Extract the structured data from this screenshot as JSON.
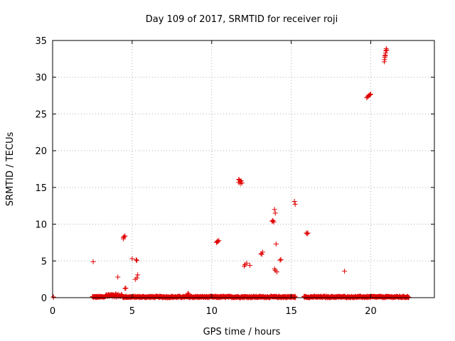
{
  "chart_data": {
    "type": "scatter",
    "title": "Day 109 of 2017, SRMTID for receiver roji",
    "xlabel": "GPS time / hours",
    "ylabel": "SRMTID / TECUs",
    "xlim": [
      0,
      24
    ],
    "ylim": [
      0,
      35
    ],
    "xticks": [
      0,
      5,
      10,
      15,
      20
    ],
    "yticks": [
      0,
      5,
      10,
      15,
      20,
      25,
      30,
      35
    ],
    "xtick_labels": [
      "0",
      "5",
      "10",
      "15",
      "20"
    ],
    "ytick_labels": [
      "0",
      "5",
      "10",
      "15",
      "20",
      "25",
      "30",
      "35"
    ],
    "grid": true,
    "marker": "+",
    "color": "#e00000",
    "series": [
      {
        "points": [
          [
            0.05,
            0.1
          ],
          [
            0.05,
            0.05
          ],
          [
            2.55,
            4.9
          ],
          [
            4.1,
            2.8
          ],
          [
            4.45,
            8.2
          ],
          [
            4.5,
            8.3
          ],
          [
            4.55,
            8.4
          ],
          [
            4.45,
            8.0
          ],
          [
            4.6,
            1.3
          ],
          [
            4.55,
            1.25
          ],
          [
            5.0,
            5.3
          ],
          [
            5.2,
            2.5
          ],
          [
            5.3,
            2.7
          ],
          [
            5.35,
            3.1
          ],
          [
            5.25,
            5.15
          ],
          [
            5.3,
            5.05
          ],
          [
            8.5,
            0.6
          ],
          [
            8.55,
            0.5
          ],
          [
            10.3,
            7.5
          ],
          [
            10.35,
            7.7
          ],
          [
            10.4,
            7.6
          ],
          [
            10.45,
            7.8
          ],
          [
            10.35,
            7.65
          ],
          [
            11.7,
            15.7
          ],
          [
            11.75,
            16.0
          ],
          [
            11.8,
            15.8
          ],
          [
            11.85,
            15.9
          ],
          [
            11.9,
            15.6
          ],
          [
            11.7,
            16.1
          ],
          [
            11.8,
            15.5
          ],
          [
            12.05,
            4.3
          ],
          [
            12.1,
            4.5
          ],
          [
            12.2,
            4.7
          ],
          [
            12.4,
            4.4
          ],
          [
            13.1,
            6.0
          ],
          [
            13.2,
            6.2
          ],
          [
            13.15,
            5.9
          ],
          [
            13.8,
            10.4
          ],
          [
            13.85,
            10.5
          ],
          [
            13.9,
            10.3
          ],
          [
            13.85,
            10.45
          ],
          [
            13.95,
            12.0
          ],
          [
            14.0,
            11.5
          ],
          [
            13.95,
            3.9
          ],
          [
            14.0,
            3.7
          ],
          [
            14.1,
            3.5
          ],
          [
            14.05,
            7.3
          ],
          [
            14.3,
            5.1
          ],
          [
            14.35,
            5.2
          ],
          [
            15.2,
            13.1
          ],
          [
            15.25,
            12.7
          ],
          [
            15.95,
            8.8
          ],
          [
            16.0,
            8.7
          ],
          [
            16.05,
            8.8
          ],
          [
            18.35,
            3.6
          ],
          [
            19.75,
            27.2
          ],
          [
            19.8,
            27.35
          ],
          [
            19.85,
            27.45
          ],
          [
            19.9,
            27.55
          ],
          [
            19.95,
            27.6
          ],
          [
            20.0,
            27.7
          ],
          [
            20.85,
            32.1
          ],
          [
            20.87,
            32.4
          ],
          [
            20.89,
            32.7
          ],
          [
            20.91,
            33.0
          ],
          [
            20.93,
            33.3
          ],
          [
            20.95,
            33.6
          ],
          [
            20.97,
            33.9
          ],
          [
            21.0,
            33.7
          ],
          [
            20.9,
            32.9
          ]
        ]
      }
    ],
    "baseline": {
      "note_ranges": [
        [
          2.5,
          15.3
        ],
        [
          15.8,
          22.4
        ]
      ],
      "typical_value": 0.15,
      "max_value": 0.7
    }
  }
}
